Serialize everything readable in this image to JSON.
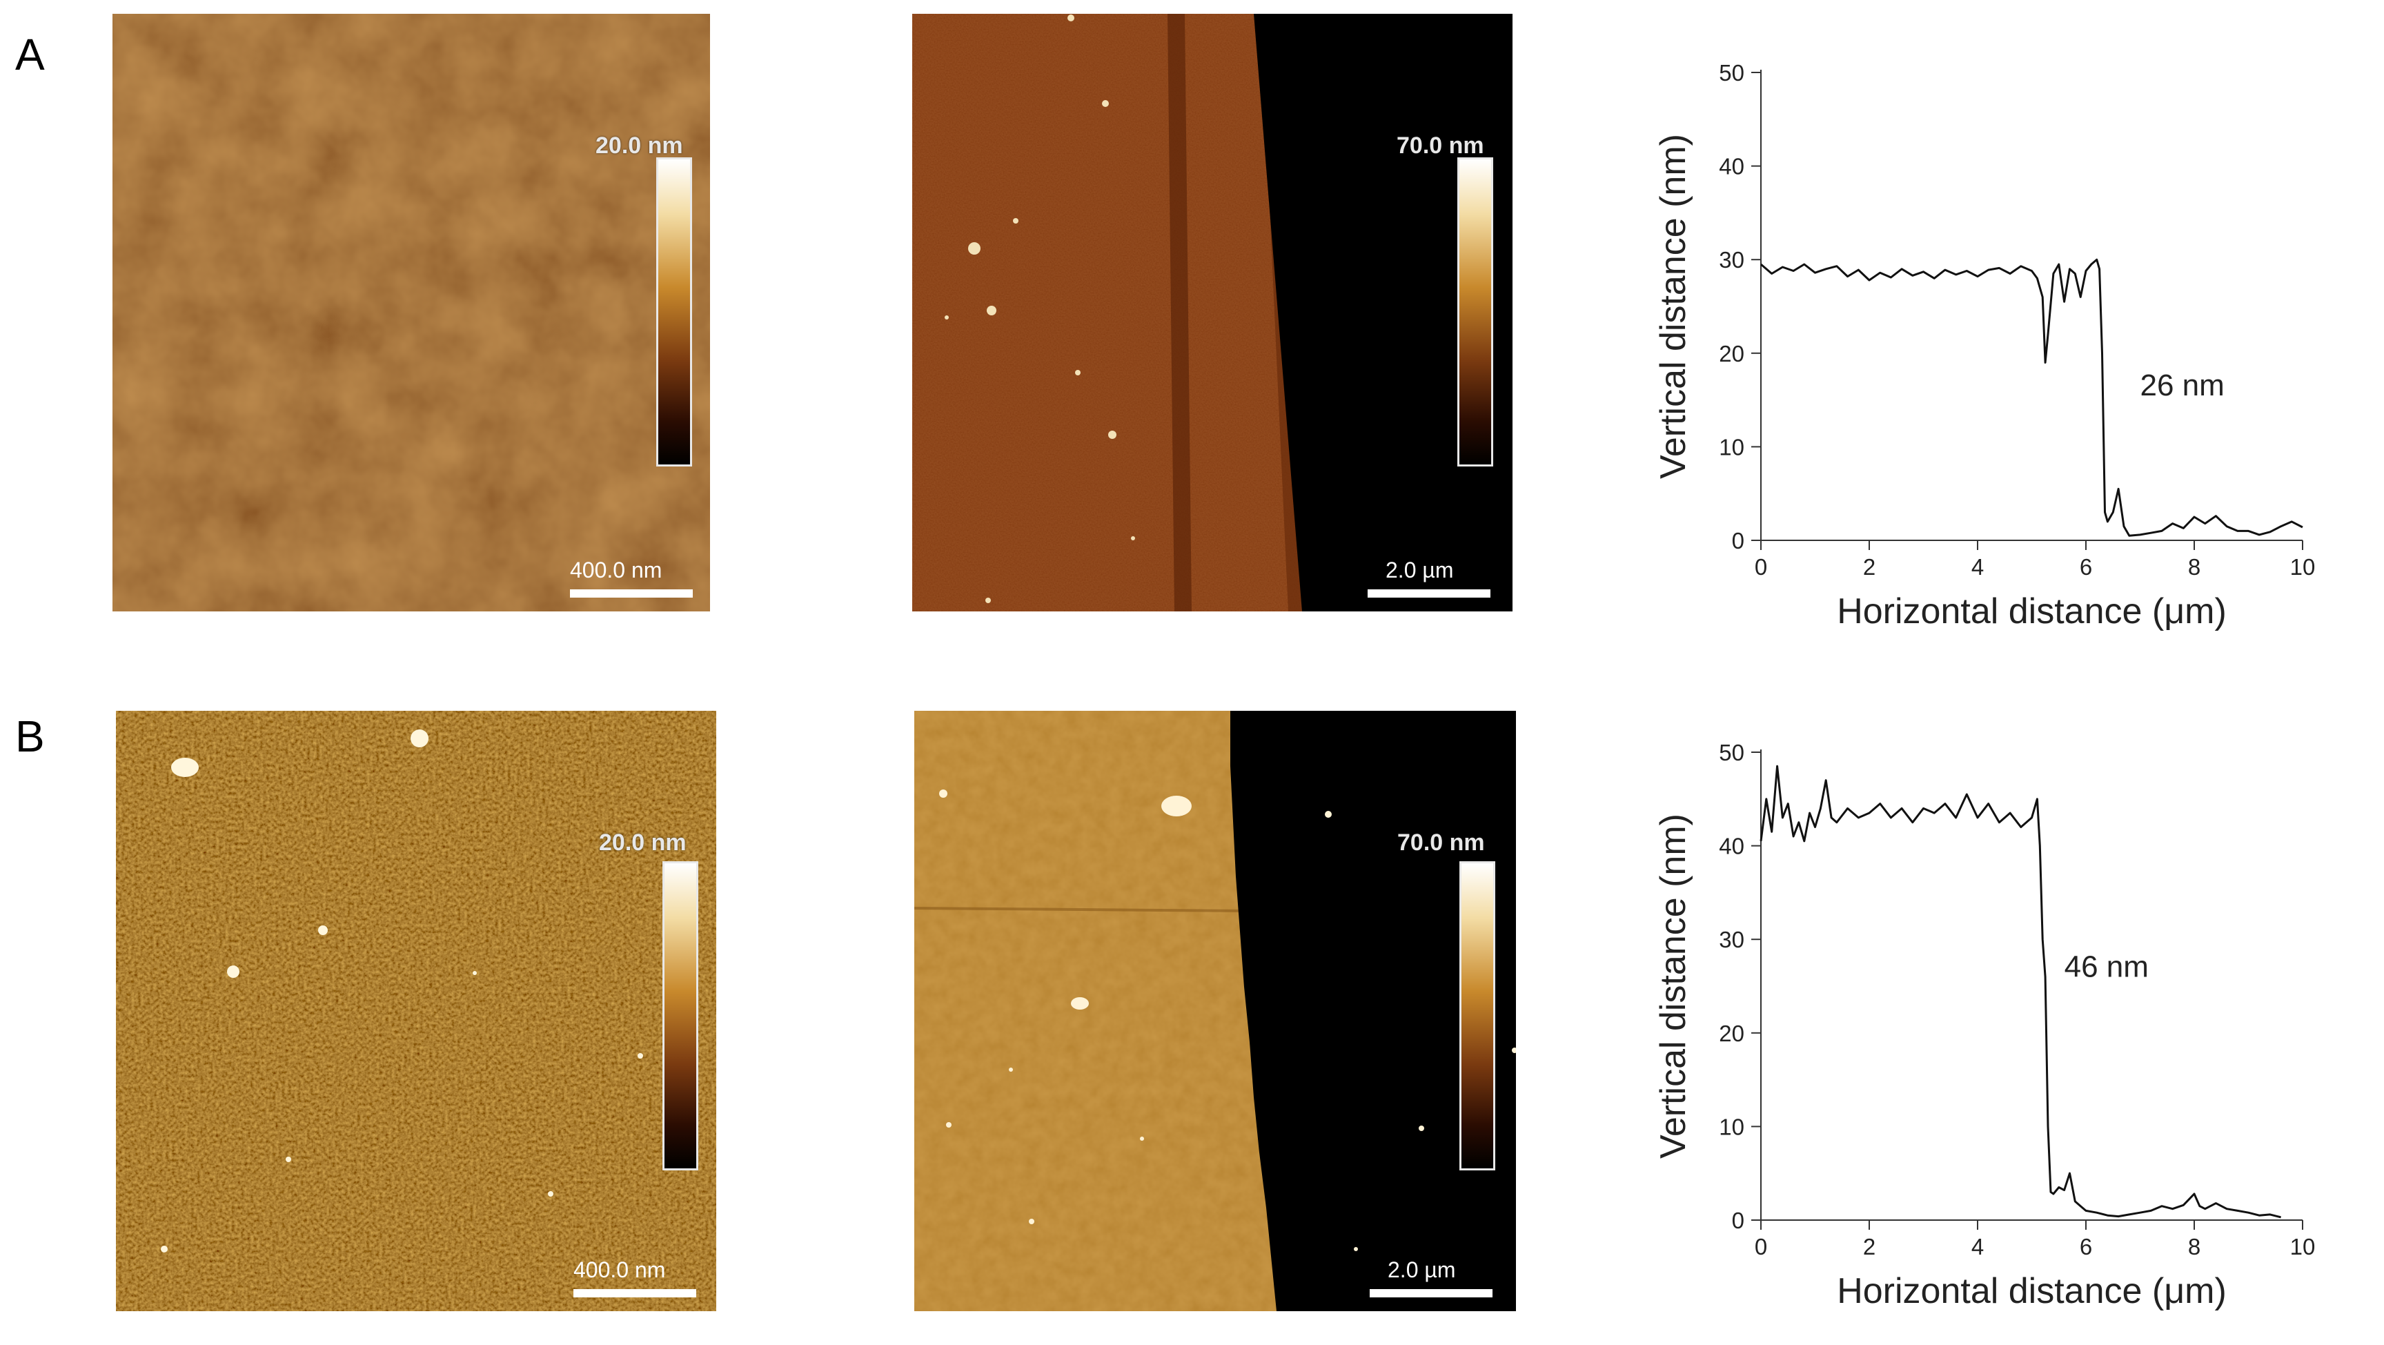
{
  "panels": [
    {
      "letter": "A",
      "small_scan": {
        "colorbar_label": "20.0 nm",
        "scalebar_label": "400.0 nm"
      },
      "large_scan": {
        "colorbar_label": "70.0 nm",
        "scalebar_label": "2.0 µm"
      }
    },
    {
      "letter": "B",
      "small_scan": {
        "colorbar_label": "20.0 nm",
        "scalebar_label": "400.0 nm"
      },
      "large_scan": {
        "colorbar_label": "70.0 nm",
        "scalebar_label": "2.0 µm"
      }
    }
  ],
  "chart_data": [
    {
      "type": "line",
      "xlabel": "Horizontal distance (μm)",
      "ylabel": "Vertical distance (nm)",
      "xlim": [
        0,
        10
      ],
      "ylim": [
        0,
        50
      ],
      "xticks": [
        0,
        2,
        4,
        6,
        8,
        10
      ],
      "yticks": [
        0,
        10,
        20,
        30,
        40,
        50
      ],
      "annotation": {
        "text": "26 nm",
        "x": 7.0,
        "y": 15.5
      },
      "series": [
        {
          "x": [
            0,
            0.2,
            0.4,
            0.6,
            0.8,
            1.0,
            1.2,
            1.4,
            1.6,
            1.8,
            2.0,
            2.2,
            2.4,
            2.6,
            2.8,
            3.0,
            3.2,
            3.4,
            3.6,
            3.8,
            4.0,
            4.2,
            4.4,
            4.6,
            4.8,
            5.0,
            5.1,
            5.2,
            5.25,
            5.3,
            5.4,
            5.5,
            5.6,
            5.7,
            5.8,
            5.9,
            6.0,
            6.1,
            6.2,
            6.25,
            6.3,
            6.35,
            6.4,
            6.5,
            6.6,
            6.7,
            6.8,
            7.0,
            7.2,
            7.4,
            7.6,
            7.8,
            8.0,
            8.2,
            8.4,
            8.6,
            8.8,
            9.0,
            9.2,
            9.4,
            9.6,
            9.8,
            10.0
          ],
          "y": [
            29.5,
            28.5,
            29.2,
            28.8,
            29.5,
            28.6,
            29.0,
            29.3,
            28.2,
            28.9,
            27.8,
            28.6,
            28.1,
            29.0,
            28.3,
            28.7,
            28.0,
            28.9,
            28.4,
            28.8,
            28.2,
            28.9,
            29.1,
            28.5,
            29.3,
            28.8,
            28.0,
            26.0,
            19.0,
            22.0,
            28.5,
            29.5,
            25.5,
            29.0,
            28.5,
            26.0,
            28.8,
            29.5,
            30.0,
            29.0,
            20.0,
            3.0,
            2.0,
            3.0,
            5.5,
            1.5,
            0.5,
            0.6,
            0.8,
            1.0,
            1.8,
            1.3,
            2.5,
            1.8,
            2.6,
            1.5,
            1.0,
            1.0,
            0.6,
            0.9,
            1.5,
            2.0,
            1.4
          ]
        }
      ]
    },
    {
      "type": "line",
      "xlabel": "Horizontal distance (μm)",
      "ylabel": "Vertical distance (nm)",
      "xlim": [
        0,
        10
      ],
      "ylim": [
        0,
        50
      ],
      "xticks": [
        0,
        2,
        4,
        6,
        8,
        10
      ],
      "yticks": [
        0,
        10,
        20,
        30,
        40,
        50
      ],
      "annotation": {
        "text": "46 nm",
        "x": 5.6,
        "y": 26.0
      },
      "series": [
        {
          "x": [
            0,
            0.1,
            0.2,
            0.3,
            0.4,
            0.5,
            0.6,
            0.7,
            0.8,
            0.9,
            1.0,
            1.1,
            1.2,
            1.3,
            1.4,
            1.6,
            1.8,
            2.0,
            2.2,
            2.4,
            2.6,
            2.8,
            3.0,
            3.2,
            3.4,
            3.6,
            3.8,
            4.0,
            4.2,
            4.4,
            4.6,
            4.8,
            5.0,
            5.1,
            5.15,
            5.2,
            5.25,
            5.3,
            5.35,
            5.4,
            5.5,
            5.6,
            5.7,
            5.8,
            5.9,
            6.0,
            6.2,
            6.4,
            6.6,
            6.8,
            7.0,
            7.2,
            7.4,
            7.6,
            7.8,
            8.0,
            8.1,
            8.2,
            8.4,
            8.6,
            8.8,
            9.0,
            9.2,
            9.4,
            9.6
          ],
          "y": [
            40.5,
            45.0,
            41.5,
            48.5,
            43.0,
            44.5,
            41.0,
            42.5,
            40.5,
            43.5,
            42.0,
            44.0,
            47.0,
            43.0,
            42.5,
            44.0,
            43.0,
            43.5,
            44.5,
            43.0,
            44.0,
            42.5,
            44.0,
            43.5,
            44.5,
            43.0,
            45.5,
            43.0,
            44.5,
            42.5,
            43.5,
            42.0,
            43.0,
            45.0,
            40.0,
            30.0,
            26.0,
            10.0,
            3.0,
            2.8,
            3.5,
            3.2,
            5.0,
            2.0,
            1.5,
            1.0,
            0.8,
            0.5,
            0.4,
            0.6,
            0.8,
            1.0,
            1.5,
            1.2,
            1.6,
            2.8,
            1.5,
            1.2,
            1.8,
            1.2,
            1.0,
            0.8,
            0.5,
            0.6,
            0.3
          ]
        }
      ]
    }
  ]
}
